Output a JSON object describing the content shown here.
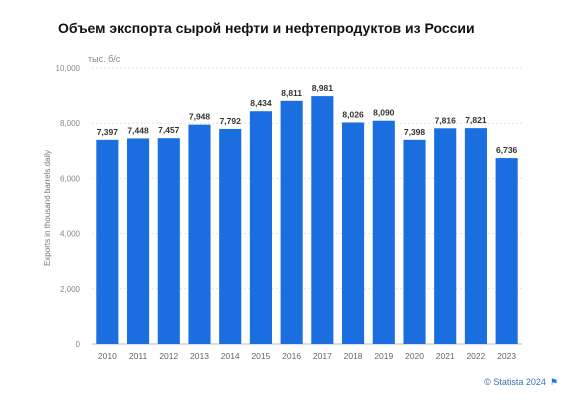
{
  "chart_data": {
    "type": "bar",
    "title": "Объем экспорта сырой нефти и нефтепродуктов из России",
    "unit_label": "тыс. б/с",
    "ylabel": "Exports in thousand barrels daily",
    "xlabel": "",
    "categories": [
      "2010",
      "2011",
      "2012",
      "2013",
      "2014",
      "2015",
      "2016",
      "2017",
      "2018",
      "2019",
      "2020",
      "2021",
      "2022",
      "2023"
    ],
    "values": [
      7397,
      7448,
      7457,
      7948,
      7792,
      8434,
      8811,
      8981,
      8026,
      8090,
      7398,
      7816,
      7821,
      6736
    ],
    "value_labels": [
      "7,397",
      "7,448",
      "7,457",
      "7,948",
      "7,792",
      "8,434",
      "8,811",
      "8,981",
      "8,026",
      "8,090",
      "7,398",
      "7,816",
      "7,821",
      "6,736"
    ],
    "ylim": [
      0,
      10000
    ],
    "yticks": [
      0,
      2000,
      4000,
      6000,
      8000,
      10000
    ],
    "ytick_labels": [
      "0",
      "2,000",
      "4,000",
      "6,000",
      "8,000",
      "10,000"
    ],
    "grid": true,
    "bar_color": "#1a6ee0"
  },
  "credit": {
    "text": "© Statista 2024",
    "flag_icon": "flag-icon"
  }
}
